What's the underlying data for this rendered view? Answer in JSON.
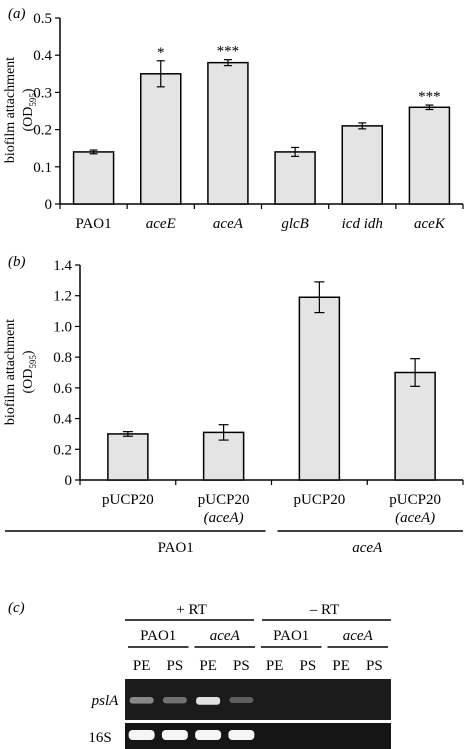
{
  "chart_data": [
    {
      "type": "bar",
      "panel_label": "(a)",
      "categories": [
        "PAO1",
        "aceE",
        "aceA",
        "glcB",
        "icd idh",
        "aceK"
      ],
      "values": [
        0.14,
        0.35,
        0.38,
        0.14,
        0.21,
        0.26
      ],
      "errors": [
        0.005,
        0.035,
        0.008,
        0.012,
        0.008,
        0.006
      ],
      "significance": [
        "",
        "*",
        "***",
        "",
        "",
        "***"
      ],
      "italic_categories": [
        false,
        true,
        true,
        true,
        true,
        true
      ],
      "ylabel": "biofilm attachment",
      "ylabel_unit": "(OD",
      "ylabel_sub": "595",
      "ylabel_close": ")",
      "ylim": [
        0,
        0.5
      ],
      "yticks": [
        "0",
        "0.1",
        "0.2",
        "0.3",
        "0.4",
        "0.5"
      ],
      "grid": false
    },
    {
      "type": "bar",
      "panel_label": "(b)",
      "categories": [
        "pUCP20",
        "pUCP20",
        "pUCP20",
        "pUCP20"
      ],
      "category_sublabels": [
        "",
        "(aceA)",
        "",
        "(aceA)"
      ],
      "values": [
        0.3,
        0.31,
        1.19,
        0.7
      ],
      "errors": [
        0.015,
        0.05,
        0.1,
        0.09
      ],
      "groups": [
        {
          "label": "PAO1",
          "italic": false,
          "members": [
            0,
            1
          ]
        },
        {
          "label": "aceA",
          "italic": true,
          "members": [
            2,
            3
          ]
        }
      ],
      "ylabel": "biofilm attachment",
      "ylabel_unit": "(OD",
      "ylabel_sub": "595",
      "ylabel_close": ")",
      "ylim": [
        0,
        1.4
      ],
      "yticks": [
        "0",
        "0.2",
        "0.4",
        "0.6",
        "0.8",
        "1.0",
        "1.2",
        "1.4"
      ],
      "grid": false
    }
  ],
  "gel": {
    "panel_label": "(c)",
    "plus_rt": "+ RT",
    "minus_rt": "– RT",
    "strain_labels": [
      "PAO1",
      "aceA",
      "PAO1",
      "aceA"
    ],
    "lane_labels": [
      "PE",
      "PS",
      "PE",
      "PS",
      "PE",
      "PS",
      "PE",
      "PS"
    ],
    "row_labels": [
      "pslA",
      "16S"
    ],
    "pslA_intensity": [
      0.55,
      0.45,
      0.9,
      0.35,
      0,
      0,
      0,
      0
    ],
    "rna16s_intensity": [
      1,
      1,
      1,
      1,
      0,
      0,
      0,
      0
    ]
  }
}
